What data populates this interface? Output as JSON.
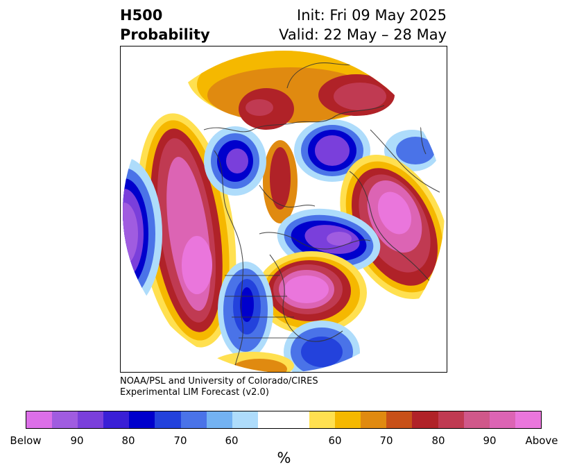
{
  "title": {
    "left_line1": "H500",
    "left_line2": "Probability",
    "right_line1": "Init: Fri 09 May 2025",
    "right_line2": "Valid: 22 May – 28 May"
  },
  "credits": {
    "line1": "NOAA/PSL and University of Colorado/CIRES",
    "line2": "Experimental LIM Forecast (v2.0)"
  },
  "colorbar": {
    "colors": [
      "#dc6fe8",
      "#a05ce0",
      "#7a3fdb",
      "#3a1fd6",
      "#0000cc",
      "#2342dc",
      "#4a73e8",
      "#73b2f2",
      "#aedcfb",
      "#ffffff",
      "#ffffff",
      "#ffe050",
      "#f5b800",
      "#e08a10",
      "#c85018",
      "#b02228",
      "#c03a52",
      "#d0588a",
      "#dc64b4",
      "#ea76dc"
    ],
    "tick_labels": [
      "Below",
      "90",
      "80",
      "70",
      "60",
      "60",
      "70",
      "80",
      "90",
      "Above"
    ],
    "unit": "%"
  },
  "map": {
    "projection": "north-polar-stereographic",
    "palette": {
      "below_extreme": "#dc6fe8",
      "below_strong": "#0000cc",
      "below_weak": "#aedcfb",
      "above_weak": "#ffe050",
      "above_mid": "#e08a10",
      "above_strong": "#b02228",
      "above_extreme": "#ea76dc",
      "coastline": "#333333"
    }
  }
}
